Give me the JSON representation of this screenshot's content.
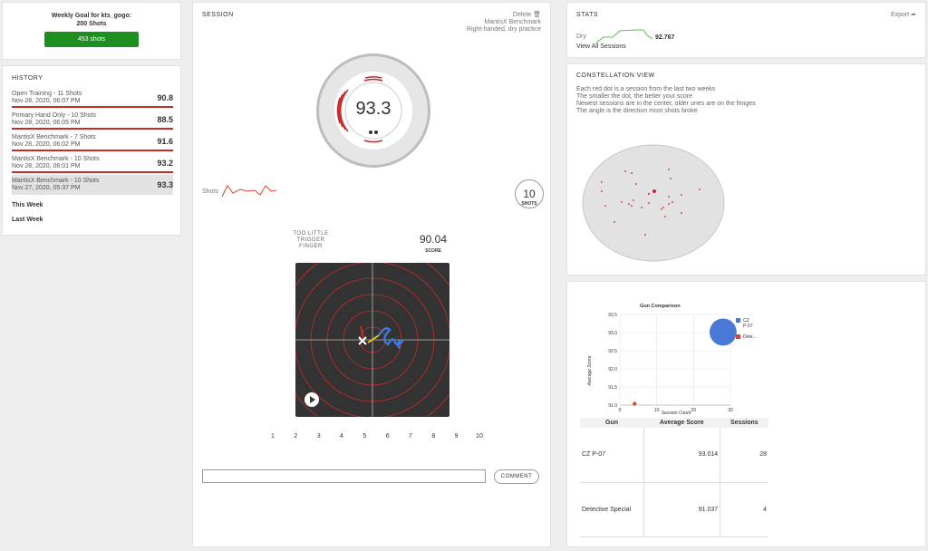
{
  "goal": {
    "title": "Weekly Goal for kts_gogo:",
    "target": "200 Shots",
    "progress_label": "453 shots"
  },
  "history": {
    "header": "HISTORY",
    "items": [
      {
        "name": "Open Training - 11 Shots",
        "date": "Nov 28, 2020, 06:07 PM",
        "score": "90.8"
      },
      {
        "name": "Primary Hand Only - 10 Shots",
        "date": "Nov 28, 2020, 06:05 PM",
        "score": "88.5"
      },
      {
        "name": "MantisX Benchmark - 7 Shots",
        "date": "Nov 28, 2020, 06:02 PM",
        "score": "91.6"
      },
      {
        "name": "MantisX Benchmark - 10 Shots",
        "date": "Nov 28, 2020, 06:01 PM",
        "score": "93.2"
      },
      {
        "name": "MantisX Benchmark - 10 Shots",
        "date": "Nov 27, 2020, 05:37 PM",
        "score": "93.3"
      }
    ],
    "this_week": "This Week",
    "last_week": "Last Week"
  },
  "session": {
    "header": "SESSION",
    "delete": "Delete 🗑",
    "gun_line1": "MantisX Benchmark",
    "gun_line2": "Right-handed, dry practice",
    "dial_score": "93.3",
    "shots_label": "Shots",
    "shots_count": "10",
    "shots_sub": "SHOTS",
    "diagnosis_1": "TOO LITTLE",
    "diagnosis_2": "TRIGGER",
    "diagnosis_3": "FINGER",
    "shot_score": "90.04",
    "shot_score_sub": "SCORE",
    "pages": [
      "1",
      "2",
      "3",
      "4",
      "5",
      "6",
      "7",
      "8",
      "9",
      "10"
    ],
    "comment_button": "COMMENT"
  },
  "stats": {
    "header": "STATS",
    "export": "Export ➦",
    "dry_label": "Dry",
    "dry_value": "92.767",
    "view_all": "View All Sessions"
  },
  "constellation": {
    "header": "CONSTELLATION VIEW",
    "desc1": "Each red dot is a session from the last two weeks",
    "desc2": "The smaller the dot, the better your score",
    "desc3": "Newest sessions are in the center, older ones are on the fringes",
    "desc4": "The angle is the direction most shots broke"
  },
  "colors": {
    "accent_red": "#c92a2a",
    "goal_green": "#1e8f1e",
    "blue": "#4a78d6"
  },
  "chart_data": {
    "type": "scatter",
    "title": "Gun Comparison",
    "xlabel": "Session Count",
    "ylabel": "Average Score",
    "xlim": [
      0,
      30
    ],
    "ylim": [
      91.0,
      93.5
    ],
    "x_ticks": [
      "0",
      "10",
      "20",
      "30"
    ],
    "y_ticks": [
      "91.0",
      "91.5",
      "92.0",
      "92.5",
      "93.0",
      "93.5"
    ],
    "legend_position": "right",
    "series": [
      {
        "name": "CZ P-07",
        "legend_label": "CZ P-07",
        "x": [
          28
        ],
        "y": [
          93.014
        ],
        "color": "#4a78d6"
      },
      {
        "name": "Detective Special",
        "legend_label": "Dete...",
        "x": [
          4
        ],
        "y": [
          91.037
        ],
        "color": "#d9442b"
      }
    ]
  },
  "gun_table": {
    "headers": [
      "Gun",
      "Average Score",
      "Sessions"
    ],
    "rows": [
      [
        "CZ P-07",
        "93.014",
        "28"
      ],
      [
        "Detective Special",
        "91.037",
        "4"
      ]
    ]
  }
}
